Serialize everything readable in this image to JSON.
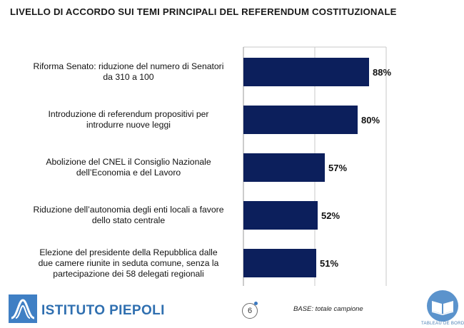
{
  "title": "LIVELLO DI ACCORDO SUI TEMI PRINCIPALI DEL REFERENDUM COSTITUZIONALE",
  "chart_data": {
    "type": "bar",
    "orientation": "horizontal",
    "categories": [
      "Riforma Senato: riduzione del numero di Senatori da 310 a 100",
      "Introduzione di referendum propositivi per introdurre nuove leggi",
      "Abolizione del CNEL il Consiglio Nazionale dell’Economia e del Lavoro",
      "Riduzione dell’autonomia degli enti locali a favore dello stato centrale",
      "Elezione del presidente della Repubblica dalle due camere riunite in seduta comune, senza la partecipazione dei 58 delegati regionali"
    ],
    "category_lines": [
      [
        "Riforma Senato: riduzione del numero di Senatori",
        "da 310 a 100"
      ],
      [
        "Introduzione di referendum propositivi per",
        "introdurre nuove leggi"
      ],
      [
        "Abolizione del CNEL il Consiglio Nazionale",
        "dell’Economia e del Lavoro"
      ],
      [
        "Riduzione dell’autonomia degli enti locali a favore",
        "dello stato centrale"
      ],
      [
        "Elezione del presidente della Repubblica dalle",
        "due camere riunite in seduta comune, senza la",
        "partecipazione dei 58 delegati regionali"
      ]
    ],
    "values": [
      88,
      80,
      57,
      52,
      51
    ],
    "value_labels": [
      "88%",
      "80%",
      "57%",
      "52%",
      "51%"
    ],
    "xlim": [
      0,
      100
    ],
    "bar_color": "#0c1f5c",
    "grid": true
  },
  "footer": {
    "logo_text": "ISTITUTO PIEPOLI",
    "page_number": "6",
    "base_note": "BASE: totale campione",
    "badge_text": "TABLEAU DE BORD"
  },
  "colors": {
    "accent": "#2f6fb0",
    "bar": "#0c1f5c"
  }
}
